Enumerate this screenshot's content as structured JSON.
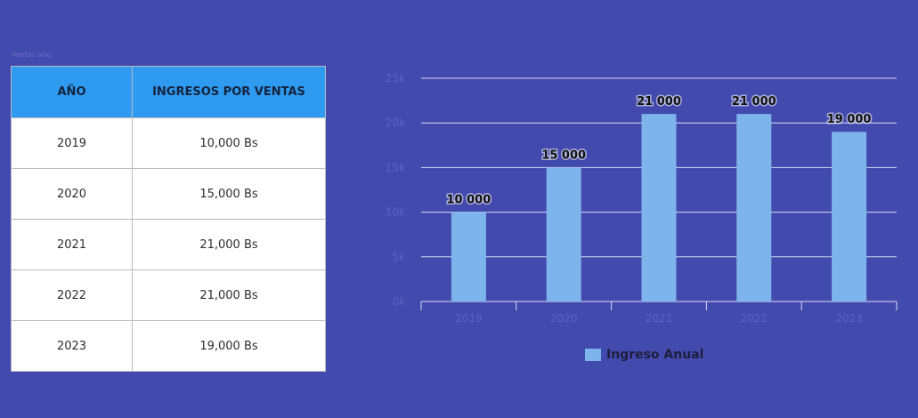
{
  "page": {
    "small_label": "Ventas año"
  },
  "table": {
    "headers": [
      "AÑO",
      "INGRESOS POR VENTAS"
    ],
    "rows": [
      [
        "2019",
        "10,000 Bs"
      ],
      [
        "2020",
        "15,000 Bs"
      ],
      [
        "2021",
        "21,000 Bs"
      ],
      [
        "2022",
        "21,000 Bs"
      ],
      [
        "2023",
        "19,000 Bs"
      ]
    ]
  },
  "colors": {
    "background": "#434aae",
    "header_bg": "#2f9bf0",
    "bar": "#7db4ec",
    "grid": "#d8daf2"
  },
  "chart_data": {
    "type": "bar",
    "categories": [
      "2019",
      "2020",
      "2021",
      "2022",
      "2023"
    ],
    "series": [
      {
        "name": "Ingreso Anual",
        "values": [
          10000,
          15000,
          21000,
          21000,
          19000
        ]
      }
    ],
    "data_labels": [
      "10 000",
      "15 000",
      "21 000",
      "21 000",
      "19 000"
    ],
    "y_ticks": [
      0,
      5000,
      10000,
      15000,
      20000,
      25000
    ],
    "y_tick_labels": [
      "0k",
      "5k",
      "10k",
      "15k",
      "20k",
      "25k"
    ],
    "ylim": [
      0,
      25000
    ],
    "grid": true,
    "legend_position": "bottom",
    "title": "",
    "xlabel": "",
    "ylabel": ""
  }
}
